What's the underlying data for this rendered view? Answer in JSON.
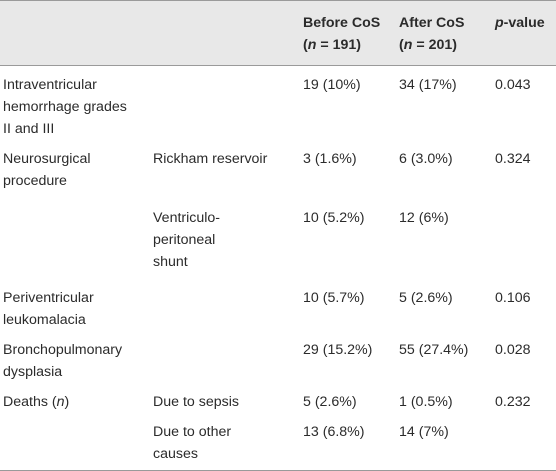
{
  "header": {
    "col1": "",
    "col2": "",
    "before": {
      "line1": "Before CoS",
      "n_open": "(",
      "n_var": "n",
      "n_rest": " = 191)"
    },
    "after": {
      "line1": "After CoS",
      "n_open": "(",
      "n_var": "n",
      "n_rest": " = 201)"
    },
    "pvalue": {
      "p": "p",
      "rest": "-value"
    }
  },
  "rows": [
    {
      "label_lines": [
        "Intraventricular",
        "hemorrhage grades",
        "II and III"
      ],
      "sub_lines": [],
      "before": "19 (10%)",
      "after": "34 (17%)",
      "p": "0.043"
    },
    {
      "label_lines": [
        "Neurosurgical",
        "procedure"
      ],
      "sub_lines": [
        "Rickham reservoir"
      ],
      "before": "3 (1.6%)",
      "after": "6 (3.0%)",
      "p": "0.324"
    },
    {
      "label_lines": [],
      "sub_lines": [
        "Ventriculo-",
        "peritoneal",
        "shunt"
      ],
      "before": "10 (5.2%)",
      "after": "12 (6%)",
      "p": ""
    },
    {
      "label_lines": [
        "Periventricular",
        "leukomalacia"
      ],
      "sub_lines": [],
      "before": "10 (5.7%)",
      "after": "5 (2.6%)",
      "p": "0.106"
    },
    {
      "label_lines": [
        "Bronchopulmonary",
        "dysplasia"
      ],
      "sub_lines": [],
      "before": "29 (15.2%)",
      "after": "55 (27.4%)",
      "p": "0.028"
    },
    {
      "label_main": "Deaths (",
      "label_var": "n",
      "label_close": ")",
      "sub_lines": [
        "Due to sepsis"
      ],
      "before": "5 (2.6%)",
      "after": "1 (0.5%)",
      "p": "0.232"
    },
    {
      "label_lines": [],
      "sub_lines": [
        "Due to other",
        "causes"
      ],
      "before": "13 (6.8%)",
      "after": "14 (7%)",
      "p": ""
    }
  ]
}
